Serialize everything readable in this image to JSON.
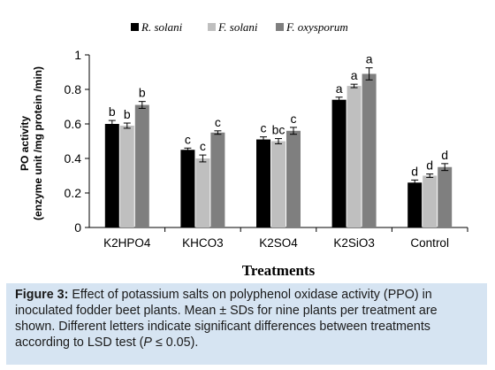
{
  "chart_data": {
    "type": "bar",
    "title": "",
    "xlabel": "Treatments",
    "ylabel_line1": "PO activity",
    "ylabel_line2": "(enzyme unit /mg protein /min)",
    "ylim": [
      0,
      1
    ],
    "yticks": [
      "0",
      "0.2",
      "0.4",
      "0.6",
      "0.8",
      "1"
    ],
    "grid": false,
    "legend_position": "top",
    "categories": [
      "K2HPO4",
      "KHCO3",
      "K2SO4",
      "K2SiO3",
      "Control"
    ],
    "series": [
      {
        "name": "R. solani",
        "color": "#000000",
        "values": [
          0.6,
          0.45,
          0.51,
          0.74,
          0.26
        ],
        "errors": [
          0.02,
          0.01,
          0.015,
          0.015,
          0.015
        ],
        "letters": [
          "b",
          "c",
          "c",
          "a",
          "d"
        ]
      },
      {
        "name": "F. solani",
        "color": "#bfbfbf",
        "values": [
          0.59,
          0.4,
          0.5,
          0.82,
          0.3
        ],
        "errors": [
          0.015,
          0.02,
          0.015,
          0.01,
          0.01
        ],
        "letters": [
          "b",
          "c",
          "bc",
          "a",
          "d"
        ]
      },
      {
        "name": "F. oxysporum",
        "color": "#7f7f7f",
        "values": [
          0.71,
          0.55,
          0.56,
          0.89,
          0.35
        ],
        "errors": [
          0.02,
          0.01,
          0.02,
          0.035,
          0.02
        ],
        "letters": [
          "b",
          "c",
          "c",
          "a",
          "d"
        ]
      }
    ]
  },
  "caption": {
    "label": "Figure 3:",
    "text_part1": " Effect of potassium salts on polyphenol oxidase activity (PPO) in inoculated fodder beet plants. Mean ± SDs for nine plants per treatment are shown. Different letters indicate significant differences between treatments according to LSD test (",
    "p_symbol": "P",
    "text_part2": " ≤ 0.05)."
  }
}
